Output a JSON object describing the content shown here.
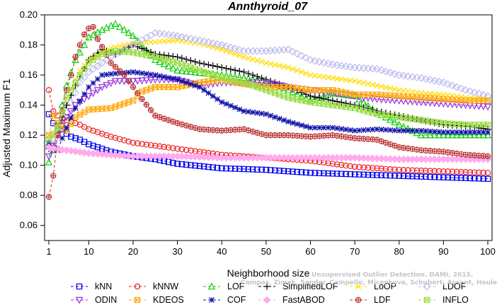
{
  "chart_data": {
    "type": "line",
    "title": "Annthyroid_07",
    "xlabel": "Neighborhood size",
    "ylabel": "Adjusted Maximum F1",
    "xlim": [
      1,
      100
    ],
    "ylim": [
      0.05,
      0.2
    ],
    "xticks": [
      1,
      10,
      20,
      30,
      40,
      50,
      60,
      70,
      80,
      90,
      100
    ],
    "yticks": [
      0.06,
      0.08,
      0.1,
      0.12,
      0.14,
      0.16,
      0.18,
      0.2
    ],
    "ytick_labels": [
      "0.06",
      "0.08",
      "0.10",
      "0.12",
      "0.14",
      "0.16",
      "0.18",
      "0.20"
    ],
    "legend_position": "bottom",
    "series": [
      {
        "name": "kNN",
        "color": "#0000ee",
        "marker": "square",
        "points": [
          [
            1,
            0.134
          ],
          [
            2,
            0.128
          ],
          [
            3,
            0.126
          ],
          [
            4,
            0.124
          ],
          [
            5,
            0.121
          ],
          [
            6,
            0.119
          ],
          [
            7,
            0.118
          ],
          [
            8,
            0.117
          ],
          [
            10,
            0.114
          ],
          [
            15,
            0.109
          ],
          [
            20,
            0.106
          ],
          [
            25,
            0.104
          ],
          [
            30,
            0.101
          ],
          [
            40,
            0.098
          ],
          [
            50,
            0.097
          ],
          [
            60,
            0.095
          ],
          [
            70,
            0.094
          ],
          [
            80,
            0.093
          ],
          [
            90,
            0.092
          ],
          [
            100,
            0.091
          ]
        ]
      },
      {
        "name": "kNNW",
        "color": "#ee2222",
        "marker": "circle",
        "points": [
          [
            1,
            0.15
          ],
          [
            2,
            0.136
          ],
          [
            3,
            0.133
          ],
          [
            4,
            0.131
          ],
          [
            5,
            0.13
          ],
          [
            6,
            0.129
          ],
          [
            7,
            0.128
          ],
          [
            8,
            0.127
          ],
          [
            10,
            0.124
          ],
          [
            15,
            0.119
          ],
          [
            20,
            0.115
          ],
          [
            25,
            0.113
          ],
          [
            30,
            0.111
          ],
          [
            40,
            0.107
          ],
          [
            50,
            0.105
          ],
          [
            60,
            0.103
          ],
          [
            70,
            0.099
          ],
          [
            80,
            0.097
          ],
          [
            90,
            0.096
          ],
          [
            100,
            0.095
          ]
        ]
      },
      {
        "name": "LOF",
        "color": "#11cc11",
        "marker": "triangle-up",
        "points": [
          [
            1,
            0.102
          ],
          [
            2,
            0.11
          ],
          [
            3,
            0.125
          ],
          [
            4,
            0.14
          ],
          [
            5,
            0.153
          ],
          [
            7,
            0.17
          ],
          [
            10,
            0.185
          ],
          [
            13,
            0.19
          ],
          [
            16,
            0.194
          ],
          [
            20,
            0.186
          ],
          [
            25,
            0.17
          ],
          [
            30,
            0.163
          ],
          [
            40,
            0.16
          ],
          [
            50,
            0.156
          ],
          [
            55,
            0.15
          ],
          [
            60,
            0.143
          ],
          [
            65,
            0.148
          ],
          [
            70,
            0.146
          ],
          [
            75,
            0.135
          ],
          [
            80,
            0.127
          ],
          [
            85,
            0.12
          ],
          [
            90,
            0.12
          ],
          [
            100,
            0.12
          ]
        ]
      },
      {
        "name": "SimplifiedLOF",
        "color": "#000000",
        "marker": "plus",
        "points": [
          [
            1,
            0.111
          ],
          [
            2,
            0.113
          ],
          [
            3,
            0.12
          ],
          [
            5,
            0.14
          ],
          [
            7,
            0.153
          ],
          [
            10,
            0.17
          ],
          [
            13,
            0.177
          ],
          [
            16,
            0.174
          ],
          [
            20,
            0.18
          ],
          [
            25,
            0.174
          ],
          [
            30,
            0.172
          ],
          [
            35,
            0.168
          ],
          [
            40,
            0.165
          ],
          [
            45,
            0.162
          ],
          [
            50,
            0.157
          ],
          [
            55,
            0.152
          ],
          [
            60,
            0.146
          ],
          [
            65,
            0.143
          ],
          [
            70,
            0.14
          ],
          [
            75,
            0.136
          ],
          [
            80,
            0.133
          ],
          [
            85,
            0.13
          ],
          [
            90,
            0.127
          ],
          [
            95,
            0.126
          ],
          [
            100,
            0.124
          ]
        ]
      },
      {
        "name": "LoOP",
        "color": "#ffdd00",
        "marker": "x",
        "points": [
          [
            1,
            0.114
          ],
          [
            3,
            0.125
          ],
          [
            5,
            0.145
          ],
          [
            8,
            0.163
          ],
          [
            10,
            0.17
          ],
          [
            15,
            0.178
          ],
          [
            20,
            0.181
          ],
          [
            25,
            0.182
          ],
          [
            30,
            0.183
          ],
          [
            35,
            0.181
          ],
          [
            40,
            0.177
          ],
          [
            45,
            0.172
          ],
          [
            50,
            0.168
          ],
          [
            55,
            0.165
          ],
          [
            60,
            0.16
          ],
          [
            65,
            0.158
          ],
          [
            70,
            0.156
          ],
          [
            75,
            0.153
          ],
          [
            80,
            0.15
          ],
          [
            85,
            0.148
          ],
          [
            90,
            0.147
          ],
          [
            95,
            0.145
          ],
          [
            100,
            0.144
          ]
        ]
      },
      {
        "name": "LDOF",
        "color": "#bbbbee",
        "marker": "diamond",
        "points": [
          [
            1,
            0.113
          ],
          [
            3,
            0.12
          ],
          [
            5,
            0.135
          ],
          [
            8,
            0.155
          ],
          [
            10,
            0.162
          ],
          [
            15,
            0.172
          ],
          [
            20,
            0.18
          ],
          [
            25,
            0.188
          ],
          [
            30,
            0.186
          ],
          [
            35,
            0.183
          ],
          [
            40,
            0.18
          ],
          [
            45,
            0.176
          ],
          [
            50,
            0.176
          ],
          [
            55,
            0.177
          ],
          [
            60,
            0.17
          ],
          [
            65,
            0.167
          ],
          [
            70,
            0.165
          ],
          [
            75,
            0.164
          ],
          [
            80,
            0.16
          ],
          [
            85,
            0.158
          ],
          [
            90,
            0.155
          ],
          [
            95,
            0.15
          ],
          [
            100,
            0.146
          ]
        ]
      },
      {
        "name": "ODIN",
        "color": "#9933dd",
        "marker": "triangle-down",
        "points": [
          [
            1,
            0.106
          ],
          [
            3,
            0.12
          ],
          [
            5,
            0.132
          ],
          [
            7,
            0.14
          ],
          [
            10,
            0.146
          ],
          [
            13,
            0.152
          ],
          [
            16,
            0.156
          ],
          [
            20,
            0.156
          ],
          [
            25,
            0.157
          ],
          [
            30,
            0.157
          ],
          [
            35,
            0.153
          ],
          [
            40,
            0.155
          ],
          [
            45,
            0.155
          ],
          [
            50,
            0.155
          ],
          [
            55,
            0.152
          ],
          [
            60,
            0.15
          ],
          [
            65,
            0.148
          ],
          [
            70,
            0.146
          ],
          [
            75,
            0.144
          ],
          [
            80,
            0.143
          ],
          [
            85,
            0.142
          ],
          [
            90,
            0.141
          ],
          [
            95,
            0.14
          ],
          [
            100,
            0.139
          ]
        ]
      },
      {
        "name": "KDEOS",
        "color": "#ffaa11",
        "marker": "square-x",
        "points": [
          [
            1,
            0.12
          ],
          [
            2,
            0.133
          ],
          [
            3,
            0.128
          ],
          [
            5,
            0.123
          ],
          [
            7,
            0.132
          ],
          [
            10,
            0.137
          ],
          [
            15,
            0.138
          ],
          [
            20,
            0.143
          ],
          [
            22,
            0.149
          ],
          [
            25,
            0.152
          ],
          [
            30,
            0.152
          ],
          [
            35,
            0.155
          ],
          [
            40,
            0.157
          ],
          [
            45,
            0.154
          ],
          [
            50,
            0.152
          ],
          [
            55,
            0.152
          ],
          [
            60,
            0.15
          ],
          [
            65,
            0.15
          ],
          [
            70,
            0.147
          ],
          [
            75,
            0.147
          ],
          [
            80,
            0.146
          ],
          [
            85,
            0.145
          ],
          [
            90,
            0.144
          ],
          [
            95,
            0.143
          ],
          [
            100,
            0.143
          ]
        ]
      },
      {
        "name": "COF",
        "color": "#1111aa",
        "marker": "star",
        "points": [
          [
            1,
            0.115
          ],
          [
            2,
            0.11
          ],
          [
            3,
            0.11
          ],
          [
            4,
            0.118
          ],
          [
            5,
            0.125
          ],
          [
            7,
            0.138
          ],
          [
            10,
            0.152
          ],
          [
            13,
            0.16
          ],
          [
            16,
            0.161
          ],
          [
            20,
            0.162
          ],
          [
            25,
            0.16
          ],
          [
            30,
            0.157
          ],
          [
            35,
            0.152
          ],
          [
            40,
            0.142
          ],
          [
            45,
            0.136
          ],
          [
            50,
            0.134
          ],
          [
            55,
            0.129
          ],
          [
            60,
            0.125
          ],
          [
            65,
            0.125
          ],
          [
            70,
            0.123
          ],
          [
            75,
            0.124
          ],
          [
            80,
            0.123
          ],
          [
            85,
            0.123
          ],
          [
            90,
            0.122
          ],
          [
            95,
            0.122
          ],
          [
            100,
            0.122
          ]
        ]
      },
      {
        "name": "FastABOD",
        "color": "#ffaaee",
        "marker": "diamond-filled",
        "points": [
          [
            1,
            0.112
          ],
          [
            2,
            0.111
          ],
          [
            5,
            0.11
          ],
          [
            10,
            0.108
          ],
          [
            15,
            0.107
          ],
          [
            20,
            0.106
          ],
          [
            25,
            0.106
          ],
          [
            30,
            0.106
          ],
          [
            40,
            0.105
          ],
          [
            50,
            0.105
          ],
          [
            60,
            0.105
          ],
          [
            70,
            0.105
          ],
          [
            80,
            0.104
          ],
          [
            90,
            0.104
          ],
          [
            100,
            0.104
          ]
        ]
      },
      {
        "name": "LDF",
        "color": "#bb3333",
        "marker": "circle-plus",
        "points": [
          [
            1,
            0.079
          ],
          [
            2,
            0.093
          ],
          [
            3,
            0.12
          ],
          [
            4,
            0.136
          ],
          [
            5,
            0.15
          ],
          [
            6,
            0.16
          ],
          [
            7,
            0.172
          ],
          [
            8,
            0.18
          ],
          [
            9,
            0.187
          ],
          [
            10,
            0.191
          ],
          [
            11,
            0.192
          ],
          [
            12,
            0.184
          ],
          [
            15,
            0.168
          ],
          [
            18,
            0.16
          ],
          [
            20,
            0.152
          ],
          [
            22,
            0.144
          ],
          [
            25,
            0.133
          ],
          [
            30,
            0.128
          ],
          [
            35,
            0.124
          ],
          [
            40,
            0.123
          ],
          [
            45,
            0.124
          ],
          [
            50,
            0.12
          ],
          [
            55,
            0.12
          ],
          [
            60,
            0.119
          ],
          [
            65,
            0.12
          ],
          [
            70,
            0.118
          ],
          [
            75,
            0.117
          ],
          [
            80,
            0.112
          ],
          [
            85,
            0.11
          ],
          [
            90,
            0.109
          ],
          [
            95,
            0.107
          ],
          [
            100,
            0.106
          ]
        ]
      },
      {
        "name": "INFLO",
        "color": "#99dd44",
        "marker": "square-x",
        "points": [
          [
            1,
            0.117
          ],
          [
            3,
            0.125
          ],
          [
            5,
            0.145
          ],
          [
            8,
            0.16
          ],
          [
            10,
            0.168
          ],
          [
            13,
            0.174
          ],
          [
            16,
            0.176
          ],
          [
            20,
            0.175
          ],
          [
            25,
            0.172
          ],
          [
            30,
            0.168
          ],
          [
            35,
            0.163
          ],
          [
            40,
            0.158
          ],
          [
            45,
            0.155
          ],
          [
            50,
            0.15
          ],
          [
            55,
            0.145
          ],
          [
            60,
            0.142
          ],
          [
            65,
            0.14
          ],
          [
            70,
            0.138
          ],
          [
            75,
            0.134
          ],
          [
            80,
            0.132
          ],
          [
            85,
            0.13
          ],
          [
            90,
            0.128
          ],
          [
            95,
            0.127
          ],
          [
            100,
            0.127
          ]
        ]
      }
    ]
  },
  "watermark": {
    "line1": "Campos, Zimek, Sander, Campello, Micenkova, Schubert, Assent, Houle",
    "line2": "Unsupervised Outlier Detection. DAMI, 2015."
  }
}
